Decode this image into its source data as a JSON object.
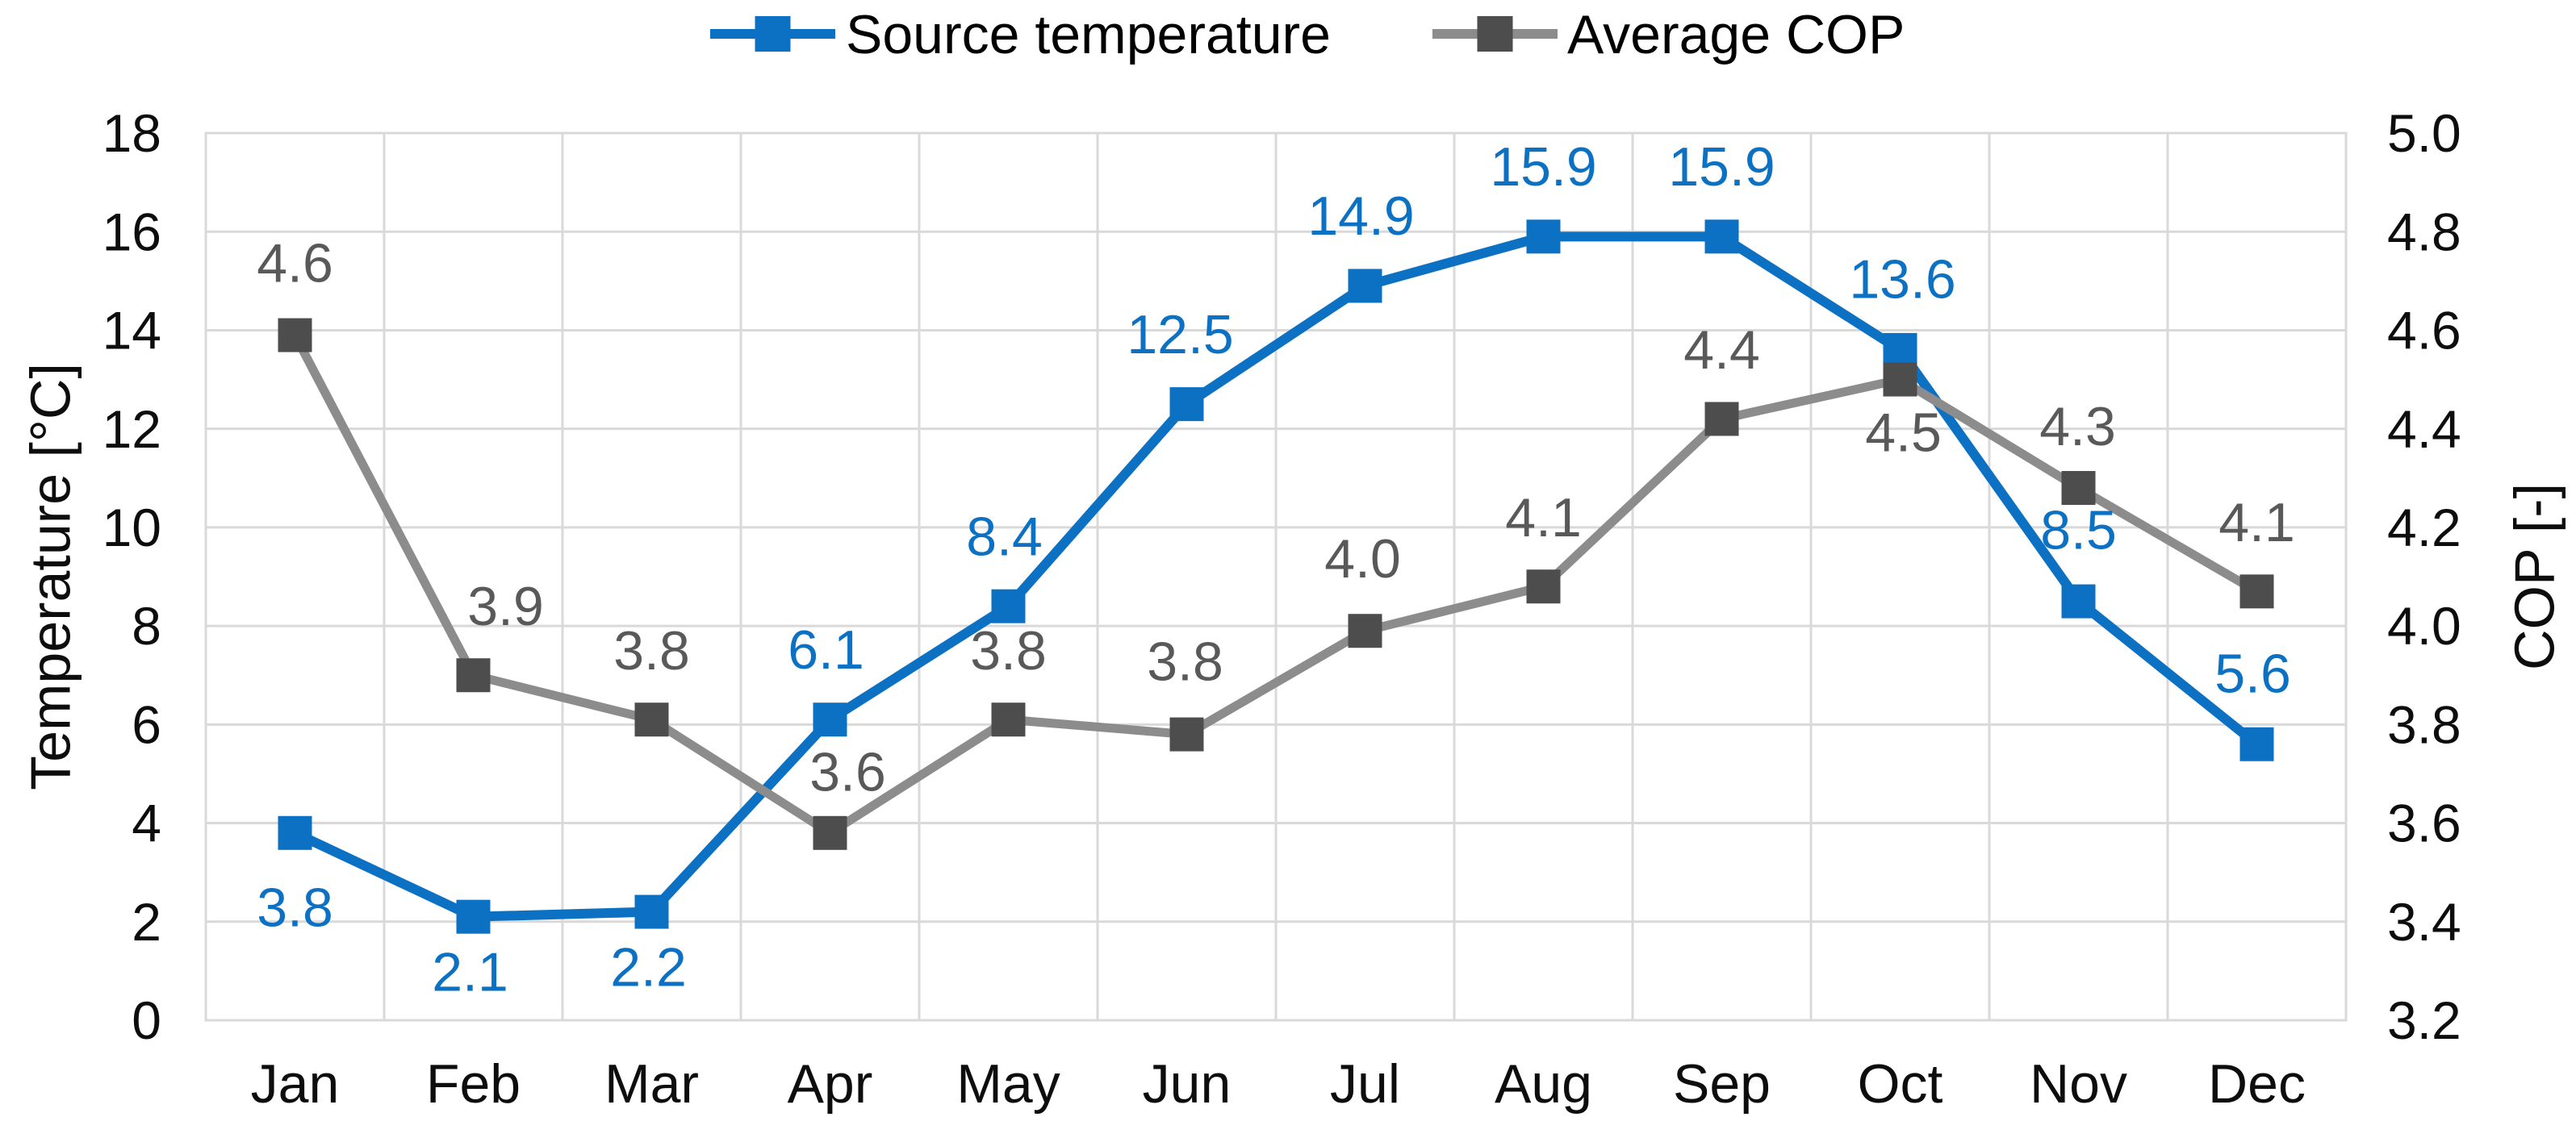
{
  "chart_data": {
    "type": "line",
    "title": "",
    "categories": [
      "Jan",
      "Feb",
      "Mar",
      "Apr",
      "May",
      "Jun",
      "Jul",
      "Aug",
      "Sep",
      "Oct",
      "Nov",
      "Dec"
    ],
    "series": [
      {
        "name": "Source temperature",
        "axis": "left",
        "color": "#0c71c3",
        "marker_color": "#0c71c3",
        "marker": "square",
        "values": [
          3.8,
          2.1,
          2.2,
          6.1,
          8.4,
          12.5,
          14.9,
          15.9,
          15.9,
          13.6,
          8.5,
          5.6
        ],
        "labels": [
          "3.8",
          "2.1",
          "2.2",
          "6.1",
          "8.4",
          "12.5",
          "14.9",
          "15.9",
          "15.9",
          "13.6",
          "8.5",
          "5.6"
        ],
        "label_color": "#0c71c3",
        "label_side": [
          "below",
          "below",
          "below",
          "above",
          "above",
          "above",
          "above",
          "above",
          "above",
          "above",
          "above",
          "above"
        ],
        "label_dy": [
          92,
          68,
          68,
          -87,
          -87,
          -87,
          -87,
          -87,
          -87,
          -88,
          -89,
          -88
        ],
        "label_dx": [
          0,
          -4,
          -4,
          -5,
          -5,
          -8,
          -5,
          0,
          0,
          3,
          0,
          -5
        ]
      },
      {
        "name": "Average COP",
        "axis": "right",
        "color": "#8c8c8c",
        "marker_color": "#4d4d4d",
        "marker": "square",
        "values": [
          4.6,
          3.9,
          3.8,
          3.6,
          3.8,
          3.8,
          4.0,
          4.1,
          4.4,
          4.5,
          4.3,
          4.1
        ],
        "plot_values": [
          4.59,
          3.9,
          3.81,
          3.58,
          3.81,
          3.78,
          3.99,
          4.08,
          4.42,
          4.5,
          4.28,
          4.07
        ],
        "labels": [
          "4.6",
          "3.9",
          "3.8",
          "3.6",
          "3.8",
          "3.8",
          "4.0",
          "4.1",
          "4.4",
          "4.5",
          "4.3",
          "4.1"
        ],
        "label_color": "#595959",
        "label_side": [
          "above",
          "above",
          "above",
          "above",
          "above",
          "above",
          "above",
          "above",
          "above",
          "below",
          "above",
          "above"
        ],
        "label_dy": [
          -90,
          -86,
          -86,
          -76,
          -86,
          -91,
          -90,
          -86,
          -86,
          65,
          -77,
          -86
        ],
        "label_dx": [
          0,
          40,
          0,
          22,
          0,
          -2,
          -3,
          0,
          0,
          4,
          -1,
          0
        ]
      }
    ],
    "left_axis": {
      "title": "Temperature [°C]",
      "min": 0,
      "max": 18,
      "tick_step": 2,
      "ticks": [
        "0",
        "2",
        "4",
        "6",
        "8",
        "10",
        "12",
        "14",
        "16",
        "18"
      ]
    },
    "right_axis": {
      "title": "COP [-]",
      "min": 3.2,
      "max": 5.0,
      "tick_step": 0.2,
      "ticks": [
        "3.2",
        "3.4",
        "3.6",
        "3.8",
        "4.0",
        "4.2",
        "4.4",
        "4.6",
        "4.8",
        "5.0"
      ]
    },
    "legend": {
      "position": "top",
      "entries": [
        "Source temperature",
        "Average COP"
      ]
    },
    "grid": {
      "show": true,
      "color": "#d9d9d9"
    },
    "text_color": "#0d0d0d",
    "background": "#ffffff"
  }
}
